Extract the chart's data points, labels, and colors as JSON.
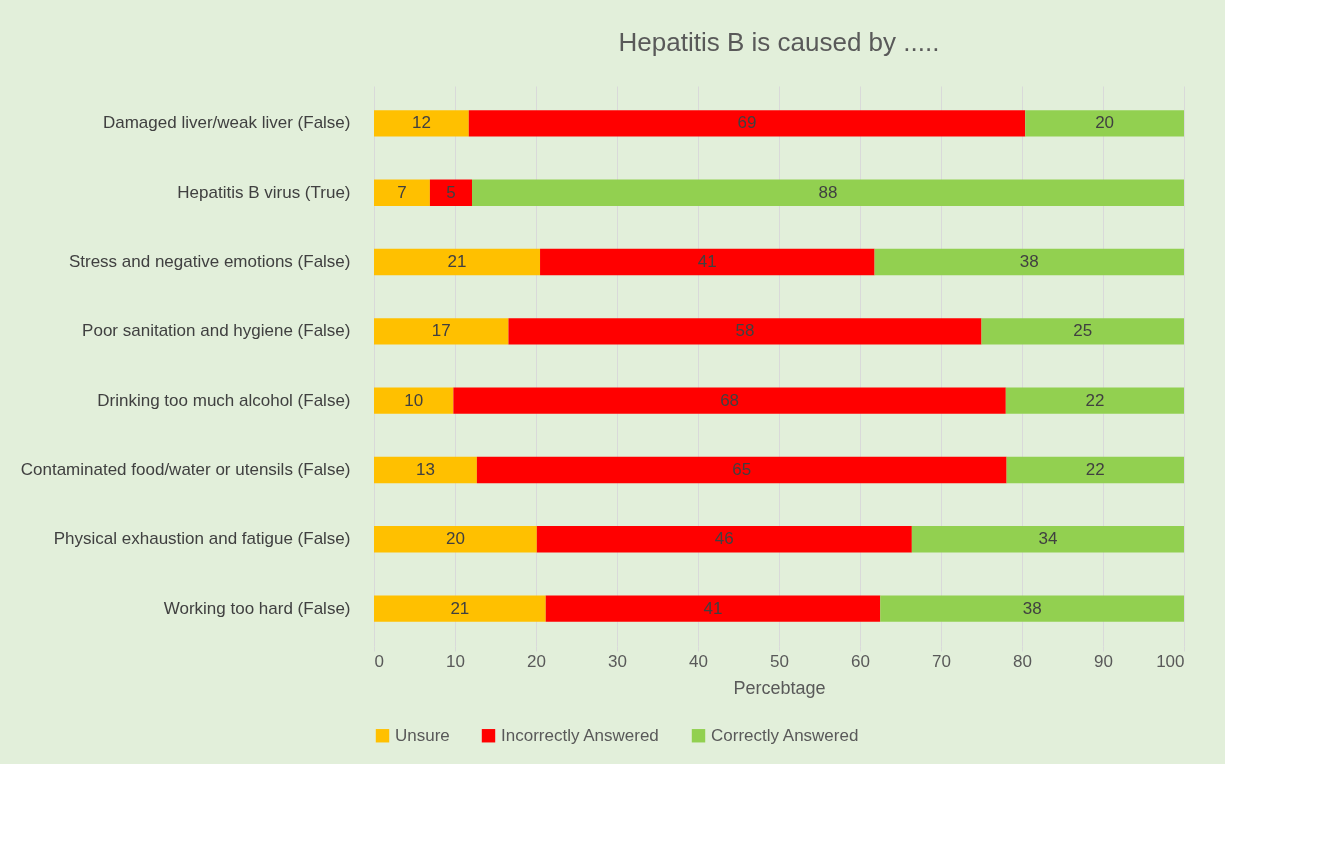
{
  "chart_data": {
    "type": "bar",
    "orientation": "horizontal",
    "stacked": true,
    "title": "Hepatitis B is caused by .....",
    "xlabel": "Percebtage",
    "categories": [
      "Damaged liver/weak liver (False)",
      "Hepatitis B virus (True)",
      "Stress and negative emotions (False)",
      "Poor sanitation and hygiene (False)",
      "Drinking too much alcohol (False)",
      "Contaminated food/water or utensils (False)",
      "Physical exhaustion and fatigue (False)",
      "Working too hard (False)"
    ],
    "series": [
      {
        "name": "Unsure",
        "color": "#ffc000",
        "values": [
          11.7,
          6.9,
          20.5,
          16.6,
          9.8,
          12.7,
          20.1,
          21.2
        ],
        "value_labels": [
          "12",
          "7",
          "21",
          "17",
          "10",
          "13",
          "20",
          "21"
        ]
      },
      {
        "name": "Incorrectly Answered",
        "color": "#ff0000",
        "values": [
          68.7,
          5.2,
          41.3,
          58.4,
          68.2,
          65.4,
          46.3,
          41.3
        ],
        "value_labels": [
          "69",
          "5",
          "41",
          "58",
          "68",
          "65",
          "46",
          "41"
        ]
      },
      {
        "name": "Correctly Answered",
        "color": "#92d050",
        "values": [
          19.6,
          87.9,
          38.2,
          25.0,
          22.0,
          21.9,
          33.6,
          37.5
        ],
        "value_labels": [
          "20",
          "88",
          "38",
          "25",
          "22",
          "22",
          "34",
          "38"
        ]
      }
    ],
    "xlim": [
      0,
      100
    ],
    "xticks": [
      0,
      10,
      20,
      30,
      40,
      50,
      60,
      70,
      80,
      90,
      100
    ],
    "grid": "x",
    "legend": "bottom"
  }
}
